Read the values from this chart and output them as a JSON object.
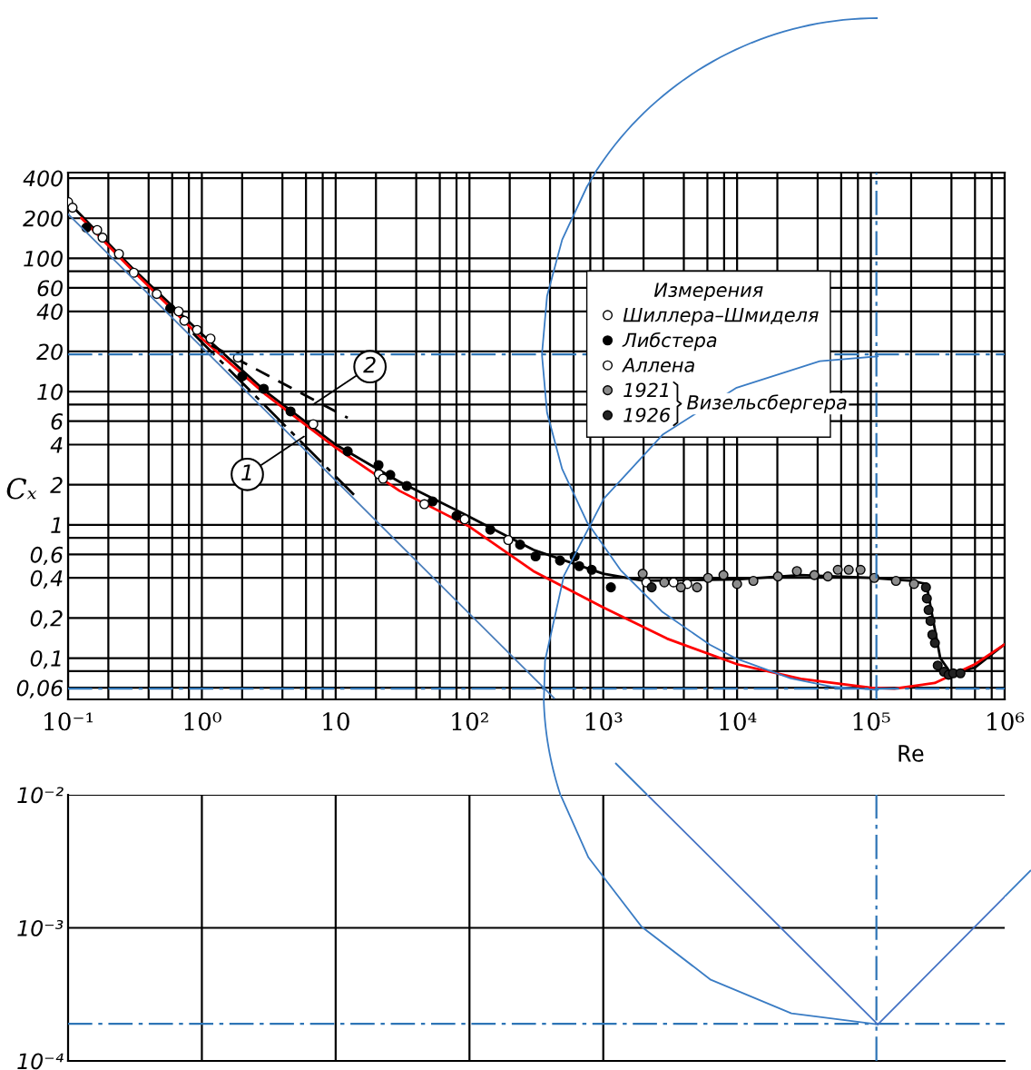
{
  "chart_data": [
    {
      "type": "line",
      "xlabel": "Re",
      "ylabel": "Cₓ",
      "legend_title": "Измерения",
      "legend": "top right",
      "log": "xy",
      "grid": true,
      "xlim": [
        0.1,
        1000000
      ],
      "ylim": [
        0.049,
        440
      ],
      "xticks": [
        {
          "value": 0.1,
          "label": "10⁻¹"
        },
        {
          "value": 0.2,
          "label": null
        },
        {
          "value": 0.4,
          "label": null
        },
        {
          "value": 0.6,
          "label": null
        },
        {
          "value": 0.8,
          "label": null
        },
        {
          "value": 1,
          "label": "10⁰"
        },
        {
          "value": 2,
          "label": null
        },
        {
          "value": 4,
          "label": null
        },
        {
          "value": 6,
          "label": null
        },
        {
          "value": 8,
          "label": null
        },
        10,
        {
          "value": 20,
          "label": null
        },
        {
          "value": 40,
          "label": null
        },
        {
          "value": 60,
          "label": null
        },
        {
          "value": 80,
          "label": null
        },
        {
          "value": 100,
          "label": "10²"
        },
        {
          "value": 200,
          "label": null
        },
        {
          "value": 400,
          "label": null
        },
        {
          "value": 600,
          "label": null
        },
        {
          "value": 800,
          "label": null
        },
        {
          "value": 1000,
          "label": "10³"
        },
        {
          "value": 2000,
          "label": null
        },
        {
          "value": 4000,
          "label": null
        },
        {
          "value": 6000,
          "label": null
        },
        {
          "value": 8000,
          "label": null
        },
        {
          "value": 10000,
          "label": "10⁴"
        },
        {
          "value": 20000,
          "label": null
        },
        {
          "value": 40000,
          "label": null
        },
        {
          "value": 60000,
          "label": null
        },
        {
          "value": 80000,
          "label": null
        },
        {
          "value": 100000,
          "label": "10⁵"
        },
        {
          "value": 200000,
          "label": null
        },
        {
          "value": 400000,
          "label": null
        },
        {
          "value": 600000,
          "label": null
        },
        {
          "value": 800000,
          "label": null
        },
        {
          "value": 1000000,
          "label": "10⁶"
        }
      ],
      "yticks": [
        400,
        200,
        100,
        {
          "value": 80,
          "label": null
        },
        60,
        40,
        20,
        10,
        {
          "value": 8,
          "label": null
        },
        6,
        4,
        2,
        1,
        {
          "value": 0.8,
          "label": null
        },
        {
          "value": 0.6,
          "label": "0,6"
        },
        {
          "value": 0.4,
          "label": "0,4"
        },
        {
          "value": 0.2,
          "label": "0,2"
        },
        {
          "value": 0.1,
          "label": "0,1"
        },
        {
          "value": 0.08,
          "label": null
        },
        {
          "value": 0.06,
          "label": "0,06"
        }
      ],
      "series": [
        {
          "type": "line",
          "color": "#000000",
          "x": [
            0.1,
            0.3,
            1,
            3,
            10,
            30,
            100,
            300,
            1000,
            2000,
            10000,
            30000,
            100000,
            200000,
            260000,
            290000,
            330000,
            400000,
            600000,
            1000000
          ],
          "values": [
            265,
            85,
            27,
            10,
            4.0,
            2.1,
            1.15,
            0.65,
            0.43,
            0.38,
            0.39,
            0.42,
            0.4,
            0.38,
            0.36,
            0.2,
            0.1,
            0.076,
            0.085,
            0.127
          ]
        },
        {
          "type": "line",
          "color": "#ff0000",
          "x": [
            0.126,
            0.3,
            1,
            3,
            10,
            30,
            100,
            300,
            1000,
            3000,
            10000,
            30000,
            100000,
            150000,
            300000,
            600000,
            1000000
          ],
          "values": [
            200,
            82,
            25,
            9.5,
            3.8,
            1.8,
            0.97,
            0.45,
            0.24,
            0.14,
            0.09,
            0.07,
            0.06,
            0.059,
            0.065,
            0.09,
            0.127
          ]
        },
        {
          "type": "line",
          "color": "#4a7ebb",
          "x": [
            0.1,
            430
          ],
          "values": [
            215,
            0.05
          ]
        },
        {
          "type": "line",
          "color": "#3a7cc4",
          "x": [
            869,
            755,
            493,
            380,
            348,
            380,
            493,
            755,
            1346,
            2742,
            6255,
            9790,
            25200,
            50350,
            112700
          ],
          "values": [
            436,
            345,
            138,
            52,
            19.0,
            6.95,
            2.62,
            1.05,
            0.458,
            0.224,
            0.126,
            0.0995,
            0.0704,
            0.0611,
            0.0578
          ]
        },
        {
          "type": "line",
          "color": "#3a7cc4",
          "x": [
            112700,
            41500,
            9930,
            2795,
            1014,
            508,
            367,
            360
          ],
          "values": [
            18.4,
            16.9,
            10.7,
            4.78,
            1.58,
            0.415,
            0.0955,
            0.0494
          ]
        },
        {
          "type": "line",
          "color": "#000000",
          "line_style": "dashed",
          "x": [
            1.18,
            12.3
          ],
          "values": [
            22.2,
            6.35
          ]
        },
        {
          "type": "line",
          "color": "#000000",
          "line_style": "dashdot",
          "x": [
            0.86,
            13.7
          ],
          "values": [
            27.3,
            1.68
          ]
        },
        {
          "type": "scatter",
          "name": "Шиллера–Шмиделя",
          "color": "#000000",
          "marker": "circle",
          "x": [
            0.1,
            0.108,
            0.165,
            0.181,
            0.24,
            0.31,
            0.46,
            0.67,
            0.74,
            0.92,
            1.16,
            1.86,
            6.8,
            21
          ],
          "values": [
            265,
            240,
            163,
            143,
            108,
            78,
            54,
            40,
            34,
            29,
            25,
            18,
            5.7,
            2.4
          ]
        },
        {
          "type": "scatter",
          "name": "Либстера",
          "color": "#000000",
          "marker": "circle",
          "x": [
            0.137,
            0.58,
            2.0,
            2.9,
            4.6,
            12.3,
            20.9,
            25.6,
            34,
            53,
            80,
            143,
            239,
            312,
            475,
            611,
            661,
            820,
            1140
          ],
          "values": [
            170,
            42,
            13,
            10.5,
            7.1,
            3.56,
            2.81,
            2.37,
            1.96,
            1.5,
            1.17,
            0.92,
            0.71,
            0.58,
            0.54,
            0.58,
            0.49,
            0.46,
            0.34
          ]
        },
        {
          "type": "scatter",
          "name": "Аллена",
          "color": "#000000",
          "marker": "circle",
          "x": [
            22.6,
            46,
            92,
            195,
            2100,
            3350,
            4240
          ],
          "values": [
            2.22,
            1.43,
            1.1,
            0.77,
            0.37,
            0.37,
            0.36
          ]
        },
        {
          "type": "scatter",
          "name": "1921",
          "color": "#000000",
          "marker": "circle",
          "x": [
            1970,
            2860,
            3800,
            5020,
            6070,
            7910,
            10000,
            13240,
            20200,
            28000,
            37800,
            47700,
            56600,
            68300,
            83700,
            106000,
            154000,
            210000
          ],
          "values": [
            0.43,
            0.37,
            0.34,
            0.34,
            0.4,
            0.42,
            0.36,
            0.38,
            0.41,
            0.45,
            0.42,
            0.41,
            0.46,
            0.46,
            0.46,
            0.4,
            0.38,
            0.36
          ]
        },
        {
          "type": "scatter",
          "name": "1926",
          "color": "#000000",
          "marker": "circle",
          "x": [
            2300,
            258000,
            262000,
            270000,
            279000,
            288000,
            301000,
            316000,
            352000,
            381000,
            412000,
            467000
          ],
          "values": [
            0.34,
            0.34,
            0.28,
            0.23,
            0.19,
            0.15,
            0.13,
            0.088,
            0.079,
            0.075,
            0.077,
            0.077
          ]
        }
      ],
      "annotations": [
        {
          "text": "2",
          "x": 6.8,
          "y": 8.0
        },
        {
          "text": "1",
          "x": 5.8,
          "y": 4.6
        },
        "Визельсбергера"
      ],
      "ref_lines": [
        {
          "axis": "y",
          "value": 0.059,
          "color": "#2e75b6",
          "line_style": "dashdot"
        },
        {
          "axis": "y",
          "value": 19,
          "color": "#2e75b6",
          "line_style": "dashdot"
        },
        {
          "axis": "x",
          "value": 110000,
          "color": "#2e75b6",
          "line_style": "dashdot"
        }
      ]
    },
    {
      "type": "line",
      "log": "xy",
      "series": [
        {
          "color": "#3a7cc4",
          "x": [
            479,
            775,
            1933,
            6360,
            25460,
            112700
          ],
          "values": [
            0.01,
            0.00338,
            0.00102,
            0.000407,
            0.000228,
            0.000188
          ]
        },
        {
          "color": "#4472c4",
          "x": [
            2133,
            112700,
            1000000
          ],
          "values": [
            0.01,
            0.000188,
            0.001714
          ]
        }
      ],
      "grid": true,
      "tick_labels": "y",
      "xlim": [
        0.1,
        1000000
      ],
      "ylim": [
        0.0001,
        0.01
      ],
      "xticks": [
        {
          "value": 1,
          "label": null
        },
        {
          "value": 10,
          "label": null
        },
        {
          "value": 100,
          "label": null
        },
        {
          "value": 1000,
          "label": null
        }
      ],
      "yticks": [
        {
          "value": 0.01,
          "label": "10⁻²"
        },
        {
          "value": 0.001,
          "label": "10⁻³"
        },
        {
          "value": 0.0001,
          "label": "10⁻⁴"
        }
      ],
      "ref_lines": [
        {
          "axis": "y",
          "value": 0.00019,
          "color": "#2e75b6",
          "line_style": "dashdot"
        },
        {
          "axis": "x",
          "value": 110000,
          "color": "#2e75b6",
          "line_style": "dashdot"
        }
      ]
    }
  ]
}
